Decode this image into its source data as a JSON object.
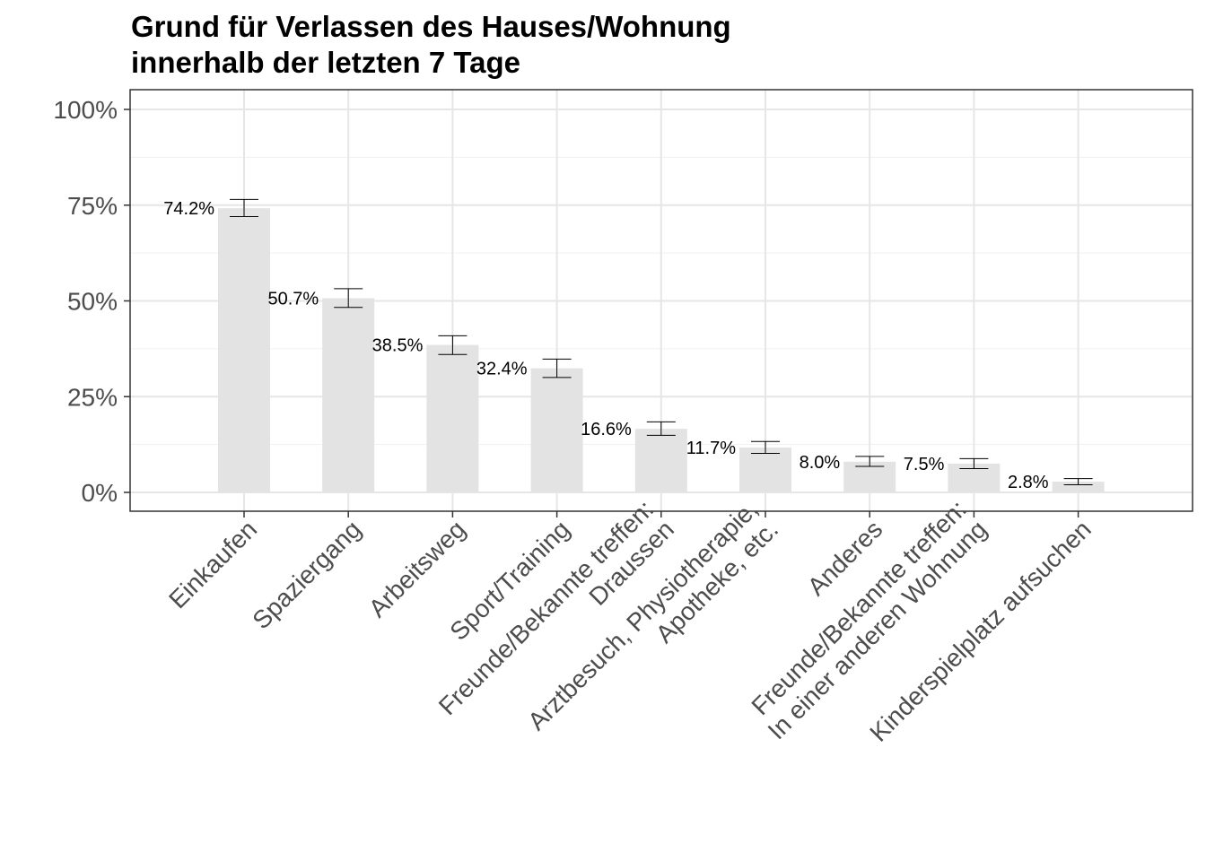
{
  "chart_data": {
    "type": "bar",
    "title": [
      "Grund für Verlassen des Hauses/Wohnung",
      "innerhalb der letzten 7 Tage"
    ],
    "xlabel": "",
    "ylabel": "",
    "ylim": [
      0,
      1
    ],
    "yticks": [
      0,
      0.25,
      0.5,
      0.75,
      1.0
    ],
    "ytick_labels": [
      "0%",
      "25%",
      "50%",
      "75%",
      "100%"
    ],
    "grid": true,
    "categories": [
      [
        "Einkaufen"
      ],
      [
        "Spaziergang"
      ],
      [
        "Arbeitsweg"
      ],
      [
        "Sport/Training"
      ],
      [
        "Freunde/Bekannte treffen:",
        "Draussen"
      ],
      [
        "Arztbesuch, Physiotherapie,",
        "Apotheke, etc."
      ],
      [
        "Anderes"
      ],
      [
        "Freunde/Bekannte treffen:",
        "In einer anderen Wohnung"
      ],
      [
        "Kinderspielplatz aufsuchen"
      ]
    ],
    "values": [
      0.742,
      0.507,
      0.385,
      0.324,
      0.166,
      0.117,
      0.08,
      0.075,
      0.028
    ],
    "value_labels": [
      "74.2%",
      "50.7%",
      "38.5%",
      "32.4%",
      "16.6%",
      "11.7%",
      "8.0%",
      "7.5%",
      "2.8%"
    ],
    "error_low": [
      0.72,
      0.483,
      0.36,
      0.3,
      0.149,
      0.102,
      0.068,
      0.062,
      0.02
    ],
    "error_high": [
      0.765,
      0.532,
      0.409,
      0.348,
      0.184,
      0.133,
      0.094,
      0.088,
      0.036
    ],
    "colors": {
      "bar": "#e3e3e3",
      "grid_major": "#e6e6e6",
      "grid_minor": "#f0f0f0",
      "border": "#333333",
      "tick_text": "#4d4d4d",
      "error": "#000000"
    }
  }
}
